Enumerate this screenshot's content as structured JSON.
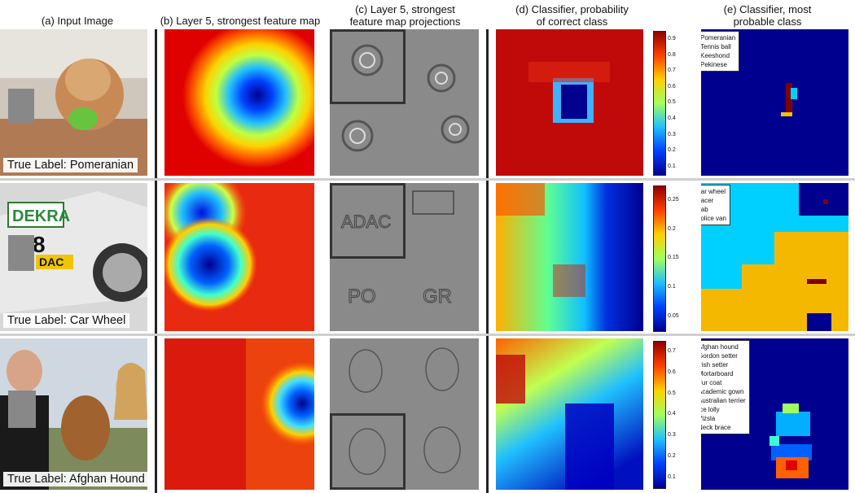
{
  "column_titles": {
    "a": "(a) Input Image",
    "b": "(b) Layer 5, strongest feature map",
    "c": "(c) Layer 5, strongest\nfeature map projections",
    "d": "(d) Classifier, probability\nof correct class",
    "e": "(e) Classifier, most\nprobable class"
  },
  "rows": [
    {
      "true_label": "True Label: Pomeranian",
      "colorbar_ticks": [
        "0.9",
        "0.8",
        "0.7",
        "0.6",
        "0.5",
        "0.4",
        "0.3",
        "0.2",
        "0.1"
      ],
      "legend": [
        {
          "label": "Pomeranian",
          "color": "#00008f"
        },
        {
          "label": "Tennis ball",
          "color": "#00d0ff"
        },
        {
          "label": "Keeshond",
          "color": "#f5c000"
        },
        {
          "label": "Pekinese",
          "color": "#800000"
        }
      ]
    },
    {
      "true_label": "True Label: Car Wheel",
      "colorbar_ticks": [
        "0.25",
        "0.2",
        "0.15",
        "0.1",
        "0.05"
      ],
      "legend": [
        {
          "label": "Car wheel",
          "color": "#00008f"
        },
        {
          "label": "Racer",
          "color": "#00d0ff"
        },
        {
          "label": "Cab",
          "color": "#f5b800"
        },
        {
          "label": "Police van",
          "color": "#800000"
        }
      ]
    },
    {
      "true_label": "True Label: Afghan Hound",
      "colorbar_ticks": [
        "0.7",
        "0.6",
        "0.5",
        "0.4",
        "0.3",
        "0.2",
        "0.1"
      ],
      "legend": [
        {
          "label": "Afghan hound",
          "color": "#00008f"
        },
        {
          "label": "Gordon setter",
          "color": "#0000ff"
        },
        {
          "label": "Irish setter",
          "color": "#0060ff"
        },
        {
          "label": "Mortarboard",
          "color": "#00b0ff"
        },
        {
          "label": "Fur coat",
          "color": "#40ffd0"
        },
        {
          "label": "Academic gown",
          "color": "#a0ff60"
        },
        {
          "label": "Australian terrier",
          "color": "#ffd000"
        },
        {
          "label": "Ice lolly",
          "color": "#ff6000"
        },
        {
          "label": "Vizsla",
          "color": "#e00000"
        },
        {
          "label": "Neck brace",
          "color": "#800000"
        }
      ]
    }
  ],
  "photo_text": {
    "dekra": "DEKRA",
    "number": "8",
    "adac": "DAC"
  },
  "projection_text": {
    "adac": "ADAC",
    "po": "PO",
    "gr": "GR"
  }
}
